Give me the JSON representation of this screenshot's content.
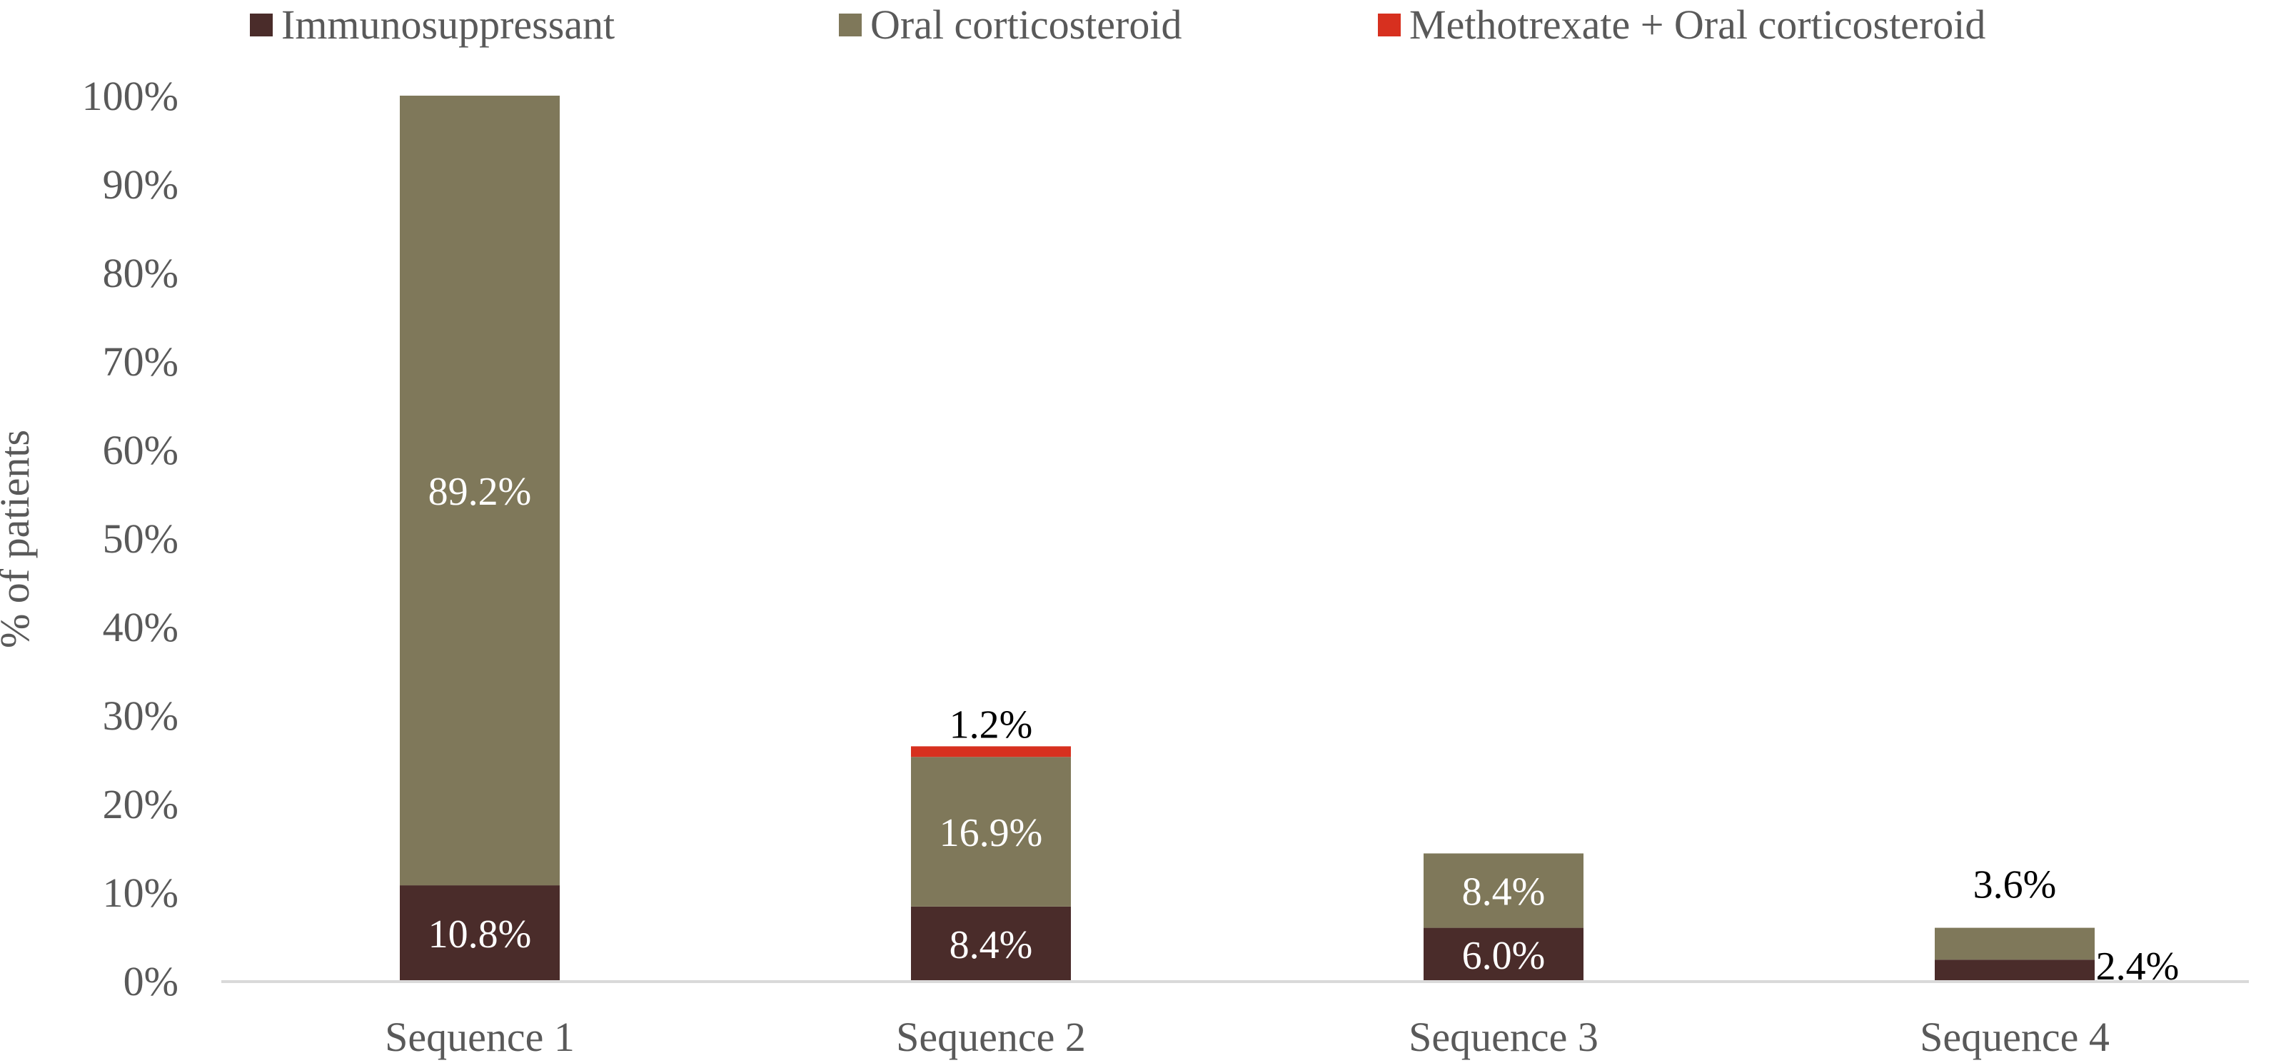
{
  "chart_data": {
    "type": "bar",
    "stacked": true,
    "title": "",
    "xlabel": "",
    "ylabel": "% of patients",
    "ylim": [
      0,
      100
    ],
    "y_ticks": [
      0,
      10,
      20,
      30,
      40,
      50,
      60,
      70,
      80,
      90,
      100
    ],
    "y_tick_suffix": "%",
    "grid": false,
    "legend_position": "top",
    "categories": [
      "Sequence 1",
      "Sequence 2",
      "Sequence 3",
      "Sequence 4"
    ],
    "series": [
      {
        "name": "Immunosuppressant",
        "color": "#4a2c2a",
        "values": [
          10.8,
          8.4,
          6.0,
          2.4
        ],
        "labels": [
          "10.8%",
          "8.4%",
          "6.0%",
          "2.4%"
        ],
        "label_colors": [
          "#ffffff",
          "#ffffff",
          "#ffffff",
          "#000000"
        ]
      },
      {
        "name": "Oral corticosteroid",
        "color": "#7f785a",
        "values": [
          89.2,
          16.9,
          8.4,
          3.6
        ],
        "labels": [
          "89.2%",
          "16.9%",
          "8.4%",
          "3.6%"
        ],
        "label_colors": [
          "#ffffff",
          "#ffffff",
          "#ffffff",
          "#000000"
        ]
      },
      {
        "name": "Methotrexate + Oral corticosteroid",
        "color": "#d7301f",
        "values": [
          0,
          1.2,
          0,
          0
        ],
        "labels": [
          "",
          "1.2%",
          "",
          ""
        ],
        "label_colors": [
          "#000000",
          "#000000",
          "#000000",
          "#000000"
        ]
      }
    ]
  }
}
